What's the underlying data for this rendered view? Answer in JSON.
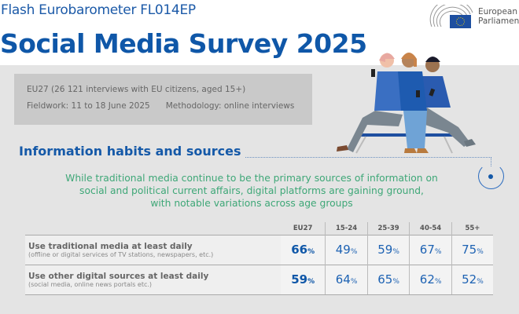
{
  "header": {
    "supertitle": "Flash Eurobarometer FL014EP",
    "title": "Social Media Survey 2025",
    "logo": {
      "line1": "European",
      "line2": "Parliament",
      "icon": "european-parliament-hemicycle-eu-flag"
    }
  },
  "info": {
    "sample": "EU27 (26 121 interviews with EU citizens, aged 15+)",
    "fieldwork": "Fieldwork: 11 to 18 June 2025",
    "methodology": "Methodology: online interviews"
  },
  "section": {
    "title": "Information habits and sources",
    "lead": [
      "While traditional media continue to be the primary sources of information on",
      "social and political current affairs, digital platforms are gaining ground,",
      "with notable variations across age groups"
    ]
  },
  "table": {
    "columns": [
      "EU27",
      "15-24",
      "25-39",
      "40-54",
      "55+"
    ],
    "rows": [
      {
        "label": "Use traditional media at least daily",
        "sub": "(offline or digital services of TV stations, newspapers, etc.)",
        "values": [
          "66",
          "49",
          "59",
          "67",
          "75"
        ]
      },
      {
        "label": "Use other digital sources at least daily",
        "sub": "(social media, online news portals etc.)",
        "values": [
          "59",
          "64",
          "65",
          "62",
          "52"
        ]
      }
    ],
    "unit": "%"
  },
  "colors": {
    "blue": "#0f57a8",
    "green": "#3ea777",
    "band": "#e4e4e4",
    "box": "#c9c9c9"
  }
}
